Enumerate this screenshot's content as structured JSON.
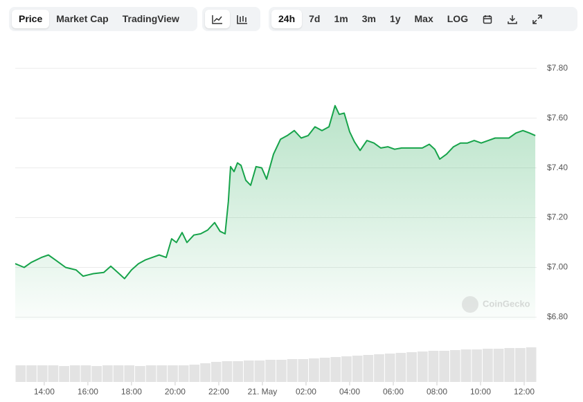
{
  "toolbar": {
    "views": [
      "Price",
      "Market Cap",
      "TradingView"
    ],
    "ranges": [
      "24h",
      "7d",
      "1m",
      "3m",
      "1y",
      "Max",
      "LOG"
    ]
  },
  "chart_data": {
    "type": "line",
    "area": true,
    "color": "#16a34a",
    "grid": true,
    "watermark": "CoinGecko",
    "x": [
      12.67,
      13.08,
      13.4,
      13.87,
      14.19,
      14.51,
      14.98,
      15.46,
      15.78,
      16.25,
      16.73,
      17.05,
      17.37,
      17.68,
      18.0,
      18.32,
      18.63,
      18.95,
      19.27,
      19.59,
      19.84,
      20.06,
      20.32,
      20.54,
      20.86,
      21.17,
      21.49,
      21.81,
      22.06,
      22.29,
      22.44,
      22.54,
      22.7,
      22.86,
      23.02,
      23.24,
      23.46,
      23.71,
      23.97,
      24.19,
      24.51,
      24.83,
      25.14,
      25.46,
      25.78,
      26.1,
      26.41,
      26.73,
      27.05,
      27.33,
      27.52,
      27.75,
      28.0,
      28.22,
      28.48,
      28.79,
      29.11,
      29.43,
      29.75,
      30.06,
      30.38,
      30.7,
      31.02,
      31.33,
      31.65,
      31.9,
      32.13,
      32.44,
      32.76,
      33.08,
      33.4,
      33.71,
      34.03,
      34.35,
      34.67,
      34.98,
      35.3,
      35.62,
      35.94,
      36.25,
      36.51
    ],
    "values": [
      7.015,
      7.0,
      7.02,
      7.04,
      7.05,
      7.03,
      7.0,
      6.99,
      6.965,
      6.975,
      6.98,
      7.005,
      6.98,
      6.955,
      6.99,
      7.015,
      7.03,
      7.04,
      7.05,
      7.04,
      7.115,
      7.1,
      7.14,
      7.1,
      7.13,
      7.135,
      7.15,
      7.18,
      7.145,
      7.135,
      7.265,
      7.405,
      7.385,
      7.42,
      7.41,
      7.35,
      7.33,
      7.405,
      7.4,
      7.355,
      7.455,
      7.515,
      7.53,
      7.55,
      7.52,
      7.53,
      7.565,
      7.55,
      7.565,
      7.65,
      7.615,
      7.62,
      7.545,
      7.505,
      7.47,
      7.51,
      7.5,
      7.48,
      7.485,
      7.475,
      7.48,
      7.48,
      7.48,
      7.48,
      7.495,
      7.475,
      7.435,
      7.455,
      7.485,
      7.5,
      7.5,
      7.51,
      7.5,
      7.51,
      7.52,
      7.52,
      7.52,
      7.54,
      7.55,
      7.54,
      7.53
    ],
    "xlim": [
      12.67,
      36.57
    ],
    "xticks": [
      {
        "value": 14,
        "label": "14:00"
      },
      {
        "value": 16,
        "label": "16:00"
      },
      {
        "value": 18,
        "label": "18:00"
      },
      {
        "value": 20,
        "label": "20:00"
      },
      {
        "value": 22,
        "label": "22:00"
      },
      {
        "value": 24,
        "label": "21. May"
      },
      {
        "value": 26,
        "label": "02:00"
      },
      {
        "value": 28,
        "label": "04:00"
      },
      {
        "value": 30,
        "label": "06:00"
      },
      {
        "value": 32,
        "label": "08:00"
      },
      {
        "value": 34,
        "label": "10:00"
      },
      {
        "value": 36,
        "label": "12:00"
      }
    ],
    "ylim": [
      6.79,
      7.88
    ],
    "yticks": [
      {
        "value": 6.8,
        "label": "$6.80"
      },
      {
        "value": 7.0,
        "label": "$7.00"
      },
      {
        "value": 7.2,
        "label": "$7.20"
      },
      {
        "value": 7.4,
        "label": "$7.40"
      },
      {
        "value": 7.6,
        "label": "$7.60"
      },
      {
        "value": 7.8,
        "label": "$7.80"
      }
    ],
    "volume": {
      "color": "#e3e3e3",
      "ylim": [
        0,
        60
      ],
      "values": [
        24,
        24,
        24,
        24,
        23,
        24,
        24,
        23,
        24,
        24,
        24,
        23,
        24,
        24,
        24,
        24,
        25,
        27,
        29,
        30,
        30,
        31,
        31,
        32,
        32,
        33,
        33,
        34,
        35,
        36,
        37,
        38,
        39,
        40,
        41,
        42,
        43,
        44,
        45,
        45,
        46,
        47,
        47,
        48,
        48,
        49,
        49,
        50
      ]
    }
  }
}
